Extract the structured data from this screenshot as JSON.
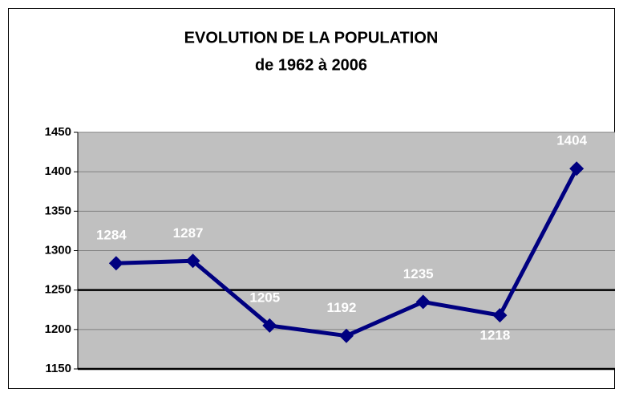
{
  "chart_data": {
    "type": "line",
    "title": "EVOLUTION DE LA POPULATION",
    "subtitle": "de 1962 à 2006",
    "categories": [
      null,
      null,
      null,
      null,
      null,
      null,
      null
    ],
    "series": [
      {
        "name": null,
        "color": "#000080",
        "values": [
          1284,
          1287,
          1205,
          1192,
          1235,
          1218,
          1404
        ]
      }
    ],
    "ylim": [
      1150,
      1450
    ],
    "yticks": [
      1150,
      1200,
      1250,
      1300,
      1350,
      1400,
      1450
    ],
    "grid": true
  }
}
